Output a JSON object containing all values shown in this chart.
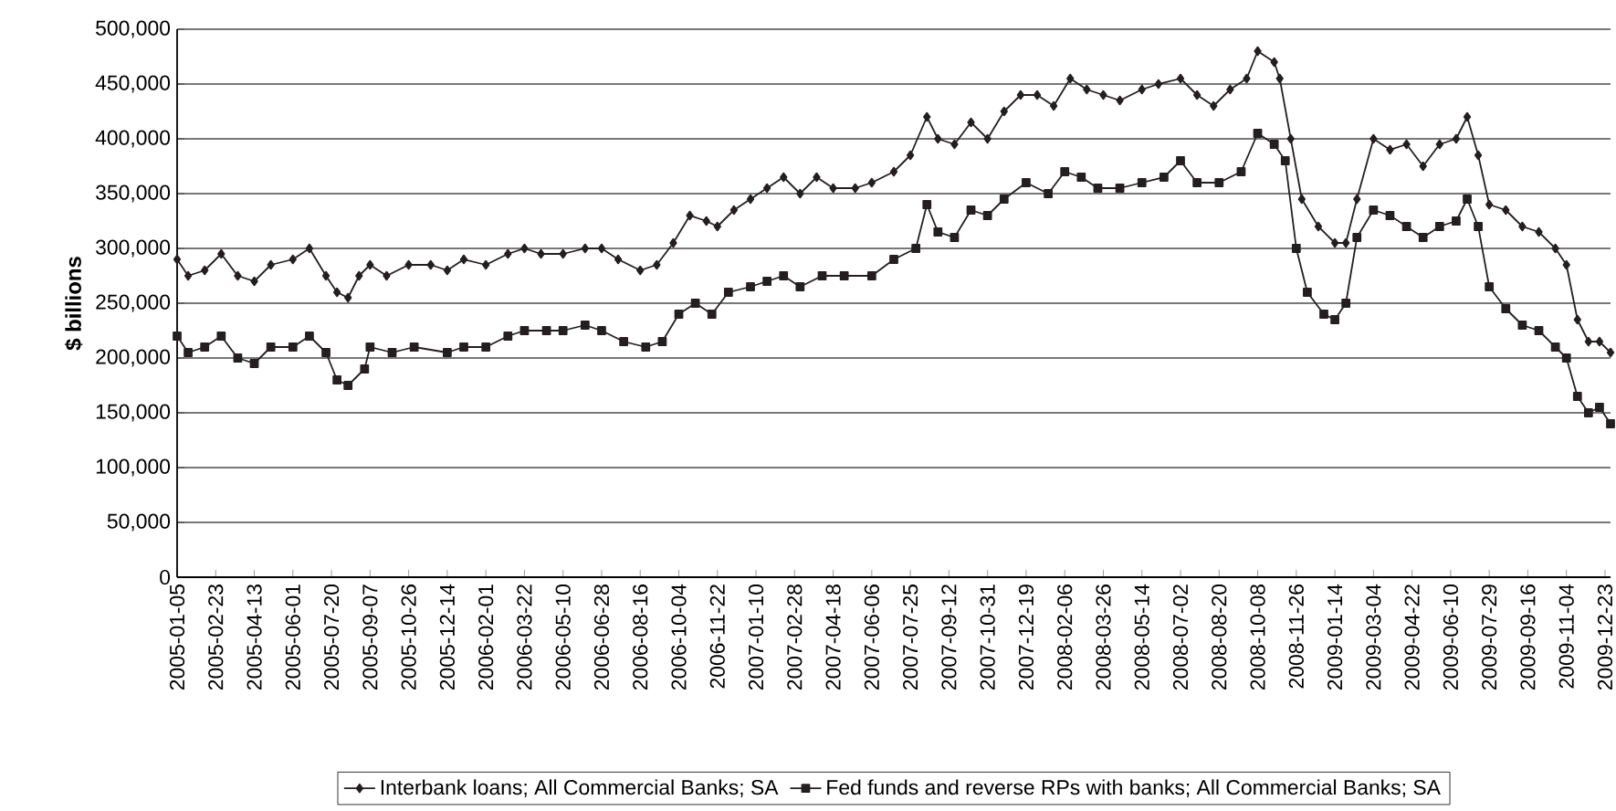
{
  "chart_data": {
    "type": "line",
    "ylabel": "$ billions",
    "legend": "bottom",
    "grid": "y",
    "line_style": "solid",
    "xlim": [
      "2005-01-05",
      "2009-12-30"
    ],
    "ylim": [
      0,
      500000
    ],
    "yticks": [
      {
        "value": 0,
        "label": "0"
      },
      {
        "value": 50000,
        "label": "50,000"
      },
      {
        "value": 100000,
        "label": "100,000"
      },
      {
        "value": 150000,
        "label": "150,000"
      },
      {
        "value": 200000,
        "label": "200,000"
      },
      {
        "value": 250000,
        "label": "250,000"
      },
      {
        "value": 300000,
        "label": "300,000"
      },
      {
        "value": 350000,
        "label": "350,000"
      },
      {
        "value": 400000,
        "label": "400,000"
      },
      {
        "value": 450000,
        "label": "450,000"
      },
      {
        "value": 500000,
        "label": "500,000"
      }
    ],
    "xticks": [
      "2005-01-05",
      "2005-02-23",
      "2005-04-13",
      "2005-06-01",
      "2005-07-20",
      "2005-09-07",
      "2005-10-26",
      "2005-12-14",
      "2006-02-01",
      "2006-03-22",
      "2006-05-10",
      "2006-06-28",
      "2006-08-16",
      "2006-10-04",
      "2006-11-22",
      "2007-01-10",
      "2007-02-28",
      "2007-04-18",
      "2007-06-06",
      "2007-07-25",
      "2007-09-12",
      "2007-10-31",
      "2007-12-19",
      "2008-02-06",
      "2008-03-26",
      "2008-05-14",
      "2008-07-02",
      "2008-08-20",
      "2008-10-08",
      "2008-11-26",
      "2009-01-14",
      "2009-03-04",
      "2009-04-22",
      "2009-06-10",
      "2009-07-29",
      "2009-09-16",
      "2009-11-04",
      "2009-12-23"
    ],
    "series": [
      {
        "name": "Interbank loans; All Commercial Banks; SA",
        "color": "#231f20",
        "marker": "diamond",
        "x": [
          "2005-01-05",
          "2005-01-19",
          "2005-02-09",
          "2005-03-02",
          "2005-03-23",
          "2005-04-13",
          "2005-05-04",
          "2005-06-01",
          "2005-06-22",
          "2005-07-13",
          "2005-07-27",
          "2005-08-10",
          "2005-08-24",
          "2005-09-07",
          "2005-09-28",
          "2005-10-26",
          "2005-11-23",
          "2005-12-14",
          "2006-01-04",
          "2006-02-01",
          "2006-03-01",
          "2006-03-22",
          "2006-04-12",
          "2006-05-10",
          "2006-06-07",
          "2006-06-28",
          "2006-07-19",
          "2006-08-16",
          "2006-09-06",
          "2006-09-27",
          "2006-10-18",
          "2006-11-08",
          "2006-11-22",
          "2006-12-13",
          "2007-01-03",
          "2007-01-24",
          "2007-02-14",
          "2007-03-07",
          "2007-03-28",
          "2007-04-18",
          "2007-05-16",
          "2007-06-06",
          "2007-07-04",
          "2007-07-25",
          "2007-08-15",
          "2007-08-29",
          "2007-09-19",
          "2007-10-10",
          "2007-10-31",
          "2007-11-21",
          "2007-12-12",
          "2008-01-02",
          "2008-01-23",
          "2008-02-13",
          "2008-03-05",
          "2008-03-26",
          "2008-04-16",
          "2008-05-14",
          "2008-06-04",
          "2008-07-02",
          "2008-07-23",
          "2008-08-13",
          "2008-09-03",
          "2008-09-24",
          "2008-10-08",
          "2008-10-29",
          "2008-11-05",
          "2008-11-19",
          "2008-12-03",
          "2008-12-24",
          "2009-01-14",
          "2009-01-28",
          "2009-02-11",
          "2009-03-04",
          "2009-03-25",
          "2009-04-15",
          "2009-05-06",
          "2009-05-27",
          "2009-06-17",
          "2009-07-01",
          "2009-07-15",
          "2009-07-29",
          "2009-08-19",
          "2009-09-09",
          "2009-09-30",
          "2009-10-21",
          "2009-11-04",
          "2009-11-18",
          "2009-12-02",
          "2009-12-16",
          "2009-12-30"
        ],
        "values": [
          290000,
          275000,
          280000,
          295000,
          275000,
          270000,
          285000,
          290000,
          300000,
          275000,
          260000,
          255000,
          275000,
          285000,
          275000,
          285000,
          285000,
          280000,
          290000,
          285000,
          295000,
          300000,
          295000,
          295000,
          300000,
          300000,
          290000,
          280000,
          285000,
          305000,
          330000,
          325000,
          320000,
          335000,
          345000,
          355000,
          365000,
          350000,
          365000,
          355000,
          355000,
          360000,
          370000,
          385000,
          420000,
          400000,
          395000,
          415000,
          400000,
          425000,
          440000,
          440000,
          430000,
          455000,
          445000,
          440000,
          435000,
          445000,
          450000,
          455000,
          440000,
          430000,
          445000,
          455000,
          480000,
          470000,
          455000,
          400000,
          345000,
          320000,
          305000,
          305000,
          345000,
          400000,
          390000,
          395000,
          375000,
          395000,
          400000,
          420000,
          385000,
          340000,
          335000,
          320000,
          315000,
          300000,
          285000,
          235000,
          215000,
          215000,
          205000
        ]
      },
      {
        "name": "Fed funds and reverse RPs with banks; All Commercial Banks; SA",
        "color": "#231f20",
        "marker": "square",
        "x": [
          "2005-01-05",
          "2005-01-19",
          "2005-02-09",
          "2005-03-02",
          "2005-03-23",
          "2005-04-13",
          "2005-05-04",
          "2005-06-01",
          "2005-06-22",
          "2005-07-13",
          "2005-07-27",
          "2005-08-10",
          "2005-08-31",
          "2005-09-07",
          "2005-10-05",
          "2005-11-02",
          "2005-12-14",
          "2006-01-04",
          "2006-02-01",
          "2006-03-01",
          "2006-03-22",
          "2006-04-19",
          "2006-05-10",
          "2006-06-07",
          "2006-06-28",
          "2006-07-26",
          "2006-08-23",
          "2006-09-13",
          "2006-10-04",
          "2006-10-25",
          "2006-11-15",
          "2006-12-06",
          "2007-01-03",
          "2007-01-24",
          "2007-02-14",
          "2007-03-07",
          "2007-04-04",
          "2007-05-02",
          "2007-06-06",
          "2007-07-04",
          "2007-08-01",
          "2007-08-15",
          "2007-08-29",
          "2007-09-19",
          "2007-10-10",
          "2007-10-31",
          "2007-11-21",
          "2007-12-19",
          "2008-01-16",
          "2008-02-06",
          "2008-02-27",
          "2008-03-19",
          "2008-04-16",
          "2008-05-14",
          "2008-06-11",
          "2008-07-02",
          "2008-07-23",
          "2008-08-20",
          "2008-09-17",
          "2008-10-08",
          "2008-10-29",
          "2008-11-12",
          "2008-11-26",
          "2008-12-10",
          "2008-12-31",
          "2009-01-14",
          "2009-01-28",
          "2009-02-11",
          "2009-03-04",
          "2009-03-25",
          "2009-04-15",
          "2009-05-06",
          "2009-05-27",
          "2009-06-17",
          "2009-07-01",
          "2009-07-15",
          "2009-07-29",
          "2009-08-19",
          "2009-09-09",
          "2009-09-30",
          "2009-10-21",
          "2009-11-04",
          "2009-11-18",
          "2009-12-02",
          "2009-12-16",
          "2009-12-30"
        ],
        "values": [
          220000,
          205000,
          210000,
          220000,
          200000,
          195000,
          210000,
          210000,
          220000,
          205000,
          180000,
          175000,
          190000,
          210000,
          205000,
          210000,
          205000,
          210000,
          210000,
          220000,
          225000,
          225000,
          225000,
          230000,
          225000,
          215000,
          210000,
          215000,
          240000,
          250000,
          240000,
          260000,
          265000,
          270000,
          275000,
          265000,
          275000,
          275000,
          275000,
          290000,
          300000,
          340000,
          315000,
          310000,
          335000,
          330000,
          345000,
          360000,
          350000,
          370000,
          365000,
          355000,
          355000,
          360000,
          365000,
          380000,
          360000,
          360000,
          370000,
          405000,
          395000,
          380000,
          300000,
          260000,
          240000,
          235000,
          250000,
          310000,
          335000,
          330000,
          320000,
          310000,
          320000,
          325000,
          345000,
          320000,
          265000,
          245000,
          230000,
          225000,
          210000,
          200000,
          165000,
          150000,
          155000,
          140000
        ]
      }
    ]
  }
}
